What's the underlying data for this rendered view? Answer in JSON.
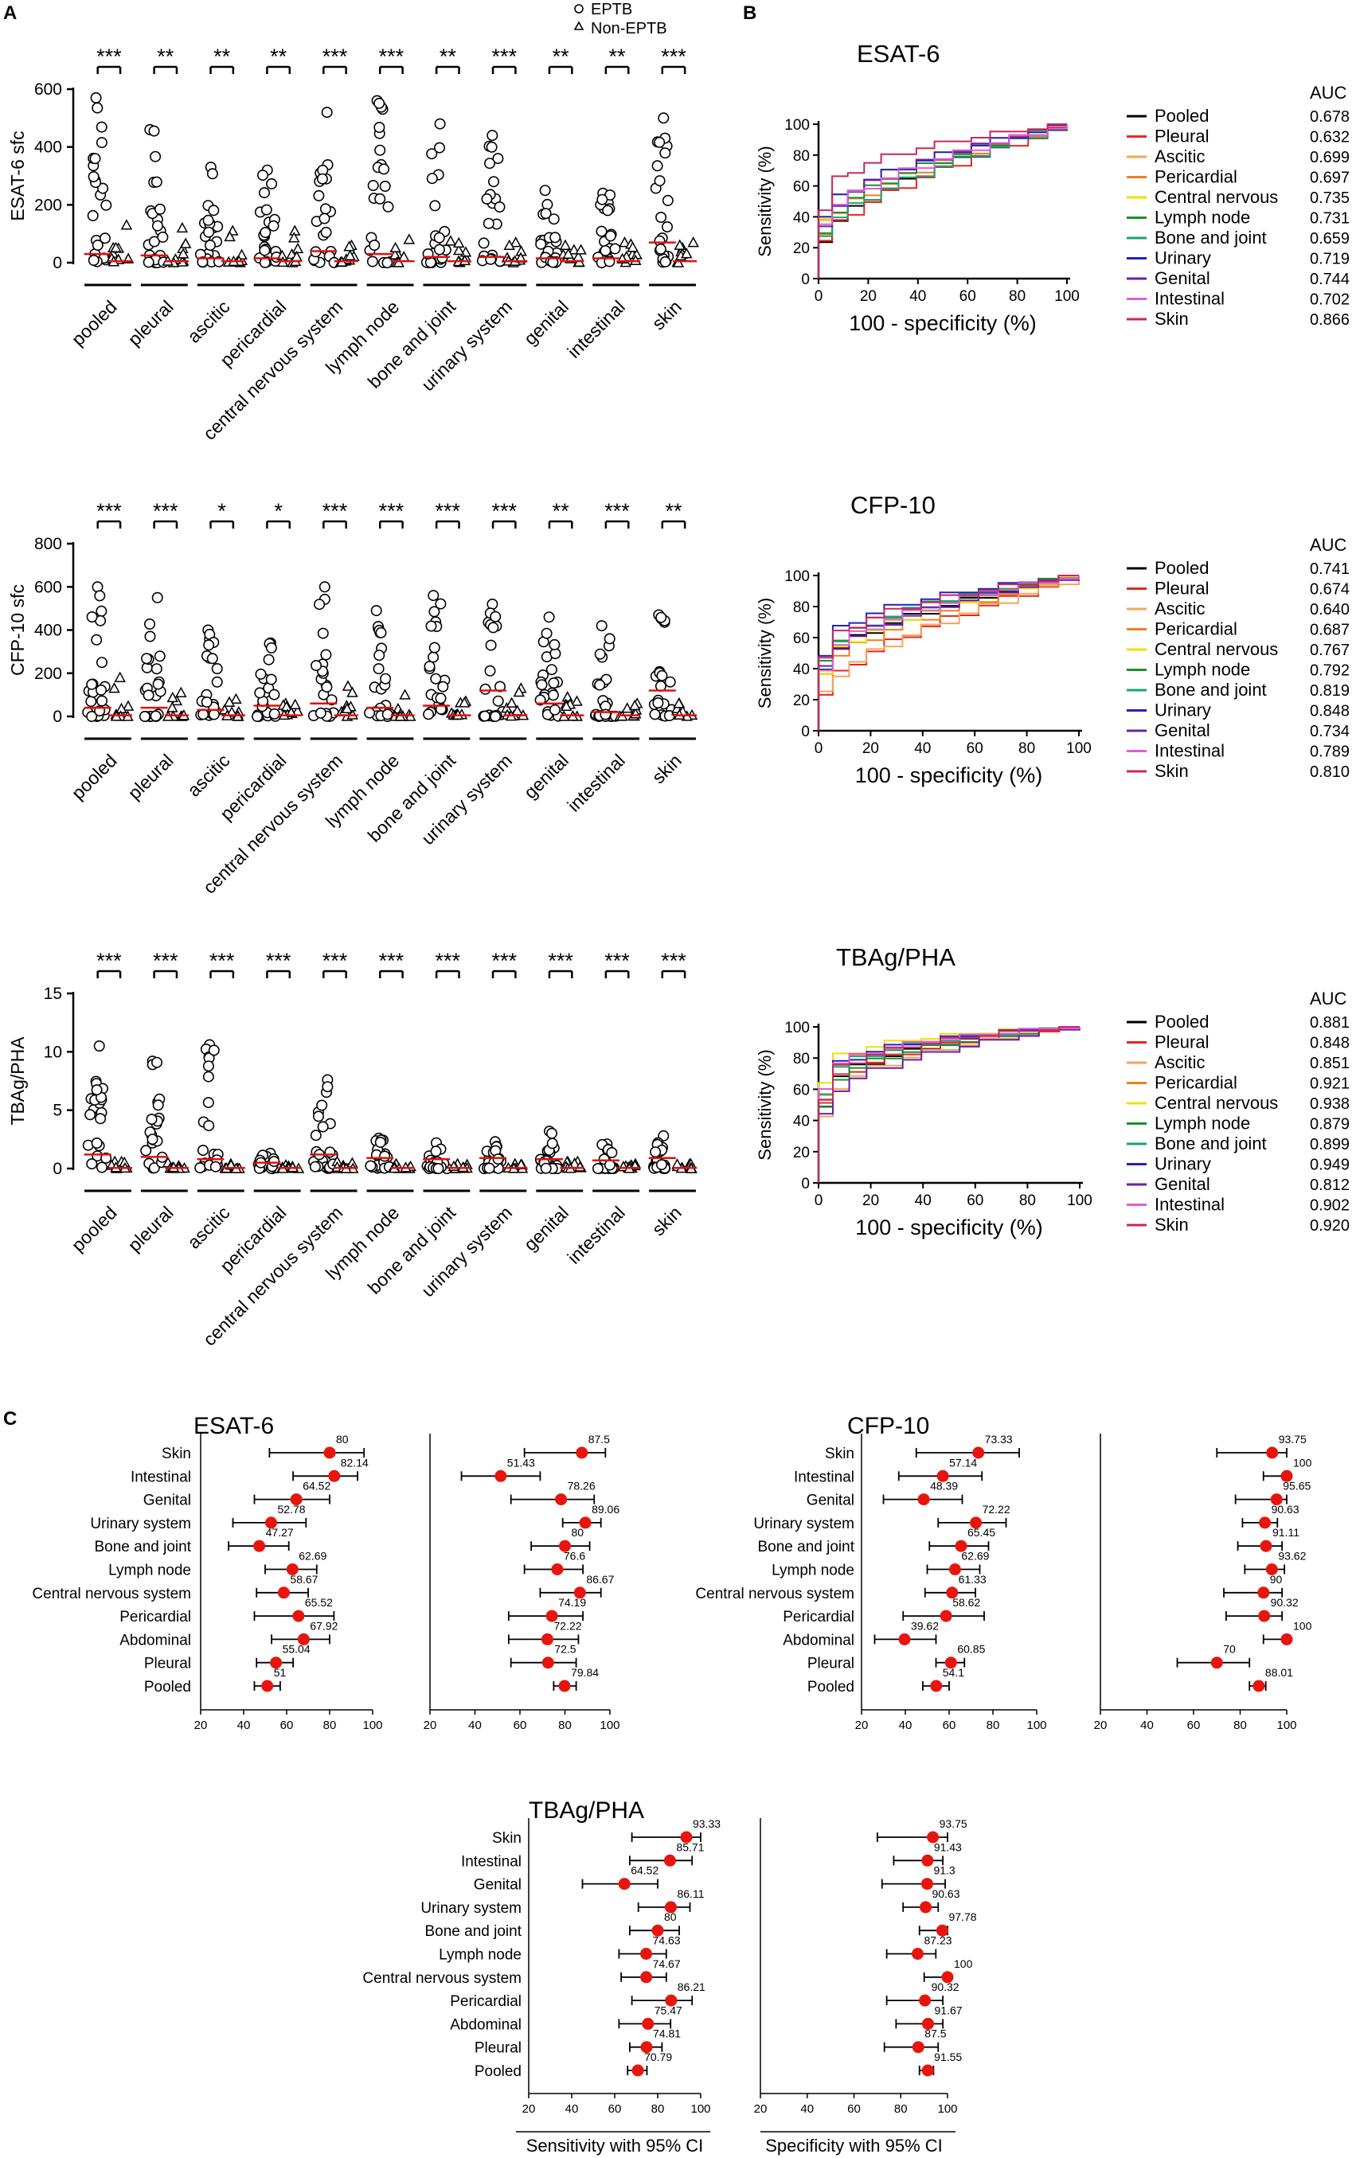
{
  "chart_data": {
    "type": "composite",
    "panel_labels": [
      "A",
      "B",
      "C"
    ],
    "legend": {
      "eptb": "EPTB",
      "non_eptb": "Non-EPTB"
    },
    "scatter_categories": [
      "pooled",
      "pleural",
      "ascitic",
      "pericardial",
      "central nervous system",
      "lymph node",
      "bone and joint",
      "urinary system",
      "genital",
      "intestinal",
      "skin"
    ],
    "scatter": [
      {
        "name": "ESAT-6",
        "ylabel": "ESAT-6 sfc",
        "yticks": [
          "0",
          "200",
          "400",
          "600"
        ],
        "ymax": 600,
        "sig": [
          "***",
          "**",
          "**",
          "**",
          "***",
          "***",
          "**",
          "***",
          "**",
          "**",
          "***"
        ],
        "max_eptb": [
          570,
          460,
          330,
          320,
          520,
          560,
          480,
          440,
          250,
          240,
          500
        ],
        "max_non": [
          130,
          120,
          110,
          110,
          60,
          80,
          75,
          70,
          60,
          70,
          70
        ],
        "median_eptb": [
          30,
          25,
          15,
          15,
          40,
          30,
          20,
          20,
          15,
          15,
          70
        ],
        "median_non": [
          5,
          5,
          5,
          5,
          5,
          5,
          5,
          5,
          5,
          5,
          5
        ]
      },
      {
        "name": "CFP-10",
        "ylabel": "CFP-10 sfc",
        "yticks": [
          "0",
          "200",
          "400",
          "600",
          "800"
        ],
        "ymax": 800,
        "sig": [
          "***",
          "***",
          "*",
          "*",
          "***",
          "***",
          "***",
          "***",
          "**",
          "***",
          "**"
        ],
        "max_eptb": [
          600,
          550,
          400,
          340,
          600,
          490,
          560,
          520,
          460,
          420,
          470
        ],
        "max_non": [
          180,
          110,
          80,
          60,
          140,
          100,
          70,
          130,
          90,
          60,
          60
        ],
        "median_eptb": [
          40,
          40,
          30,
          50,
          60,
          40,
          50,
          120,
          60,
          20,
          120
        ],
        "median_non": [
          5,
          5,
          5,
          5,
          5,
          5,
          5,
          5,
          5,
          5,
          5
        ]
      },
      {
        "name": "TBAg/PHA",
        "ylabel": "TBAg/PHA",
        "yticks": [
          "0",
          "5",
          "10",
          "15"
        ],
        "ymax": 15,
        "sig": [
          "***",
          "***",
          "***",
          "***",
          "***",
          "***",
          "***",
          "***",
          "***",
          "***",
          "***"
        ],
        "max_eptb": [
          10.5,
          9.2,
          10.6,
          1.3,
          7.6,
          2.6,
          2.2,
          2.3,
          3.2,
          2.1,
          2.8
        ],
        "max_non": [
          0.6,
          0.5,
          0.4,
          0.3,
          0.6,
          0.4,
          0.4,
          0.4,
          0.6,
          0.4,
          0.4
        ],
        "median_eptb": [
          1.2,
          1.0,
          0.8,
          0.5,
          1.2,
          0.9,
          0.8,
          0.9,
          0.8,
          0.7,
          0.9
        ],
        "median_non": [
          0.05,
          0.05,
          0.05,
          0.05,
          0.05,
          0.05,
          0.05,
          0.05,
          0.05,
          0.05,
          0.05
        ]
      }
    ],
    "roc": {
      "xlabel": "100 - specificity (%)",
      "ylabel": "Sensitivity (%)",
      "ticks": [
        "0",
        "20",
        "40",
        "60",
        "80",
        "100"
      ],
      "auc_header": "AUC",
      "series_names": [
        "Pooled",
        "Pleural",
        "Ascitic",
        "Pericardial",
        "Central nervous",
        "Lymph node",
        "Bone and joint",
        "Urinary",
        "Genital",
        "Intestinal",
        "Skin"
      ],
      "colors": [
        "#000000",
        "#e6261f",
        "#f2a65a",
        "#f07f1a",
        "#f0e000",
        "#1f8f2e",
        "#1aa37a",
        "#2020c8",
        "#6a1fa8",
        "#e05cd8",
        "#c8285a"
      ],
      "panels": [
        {
          "title": "ESAT-6",
          "auc": [
            "0.678",
            "0.632",
            "0.699",
            "0.697",
            "0.735",
            "0.731",
            "0.659",
            "0.719",
            "0.744",
            "0.702",
            "0.866"
          ]
        },
        {
          "title": "CFP-10",
          "auc": [
            "0.741",
            "0.674",
            "0.640",
            "0.687",
            "0.767",
            "0.792",
            "0.819",
            "0.848",
            "0.734",
            "0.789",
            "0.810"
          ]
        },
        {
          "title": "TBAg/PHA",
          "auc": [
            "0.881",
            "0.848",
            "0.851",
            "0.921",
            "0.938",
            "0.879",
            "0.899",
            "0.949",
            "0.812",
            "0.902",
            "0.920"
          ]
        }
      ]
    },
    "forest": {
      "categories": [
        "Skin",
        "Intestinal",
        "Genital",
        "Urinary system",
        "Bone and joint",
        "Lymph node",
        "Central nervous system",
        "Pericardial",
        "Abdominal",
        "Pleural",
        "Pooled"
      ],
      "xticks": [
        "20",
        "40",
        "60",
        "80",
        "100"
      ],
      "xlabels": {
        "sensitivity": "Sensitivity with 95% CI",
        "specificity": "Specificity with 95% CI"
      },
      "panels": [
        {
          "title": "ESAT-6",
          "sensitivity": [
            "80",
            "82.14",
            "64.52",
            "52.78",
            "47.27",
            "62.69",
            "58.67",
            "65.52",
            "67.92",
            "55.04",
            "51"
          ],
          "sens_ci": [
            [
              52,
              96
            ],
            [
              63,
              93
            ],
            [
              45,
              80
            ],
            [
              35,
              69
            ],
            [
              33,
              61
            ],
            [
              50,
              74
            ],
            [
              46,
              70
            ],
            [
              45,
              82
            ],
            [
              53,
              80
            ],
            [
              46,
              63
            ],
            [
              45,
              57
            ]
          ],
          "specificity": [
            "87.5",
            "51.43",
            "78.26",
            "89.06",
            "80",
            "76.6",
            "86.67",
            "74.19",
            "72.22",
            "72.5",
            "79.84"
          ],
          "spec_ci": [
            [
              62,
              98
            ],
            [
              34,
              69
            ],
            [
              56,
              93
            ],
            [
              79,
              96
            ],
            [
              65,
              91
            ],
            [
              62,
              88
            ],
            [
              69,
              96
            ],
            [
              55,
              88
            ],
            [
              55,
              86
            ],
            [
              56,
              85
            ],
            [
              75,
              85
            ]
          ]
        },
        {
          "title": "CFP-10",
          "sensitivity": [
            "73.33",
            "57.14",
            "48.39",
            "72.22",
            "65.45",
            "62.69",
            "61.33",
            "58.62",
            "39.62",
            "60.85",
            "54.1"
          ],
          "sens_ci": [
            [
              45,
              92
            ],
            [
              37,
              75
            ],
            [
              30,
              66
            ],
            [
              55,
              86
            ],
            [
              51,
              78
            ],
            [
              50,
              74
            ],
            [
              49,
              72
            ],
            [
              39,
              76
            ],
            [
              26,
              54
            ],
            [
              54,
              67
            ],
            [
              48,
              60
            ]
          ],
          "specificity": [
            "93.75",
            "100",
            "95.65",
            "90.63",
            "91.11",
            "93.62",
            "90",
            "90.32",
            "100",
            "70",
            "88.01"
          ],
          "spec_ci": [
            [
              70,
              100
            ],
            [
              90,
              100
            ],
            [
              78,
              100
            ],
            [
              81,
              96
            ],
            [
              79,
              98
            ],
            [
              82,
              99
            ],
            [
              73,
              98
            ],
            [
              74,
              98
            ],
            [
              90,
              100
            ],
            [
              53,
              84
            ],
            [
              84,
              91
            ]
          ]
        },
        {
          "title": "TBAg/PHA",
          "sensitivity": [
            "93.33",
            "85.71",
            "64.52",
            "86.11",
            "80",
            "74.63",
            "74.67",
            "86.21",
            "75.47",
            "74.81",
            "70.79"
          ],
          "sens_ci": [
            [
              68,
              100
            ],
            [
              67,
              96
            ],
            [
              45,
              80
            ],
            [
              71,
              95
            ],
            [
              67,
              90
            ],
            [
              62,
              84
            ],
            [
              63,
              84
            ],
            [
              68,
              96
            ],
            [
              62,
              86
            ],
            [
              67,
              82
            ],
            [
              66,
              75
            ]
          ],
          "specificity": [
            "93.75",
            "91.43",
            "91.3",
            "90.63",
            "97.78",
            "87.23",
            "100",
            "90.32",
            "91.67",
            "87.5",
            "91.55"
          ],
          "spec_ci": [
            [
              70,
              100
            ],
            [
              77,
              98
            ],
            [
              72,
              99
            ],
            [
              81,
              96
            ],
            [
              88,
              100
            ],
            [
              74,
              95
            ],
            [
              90,
              100
            ],
            [
              74,
              98
            ],
            [
              78,
              98
            ],
            [
              73,
              96
            ],
            [
              88,
              94
            ]
          ]
        }
      ]
    }
  }
}
